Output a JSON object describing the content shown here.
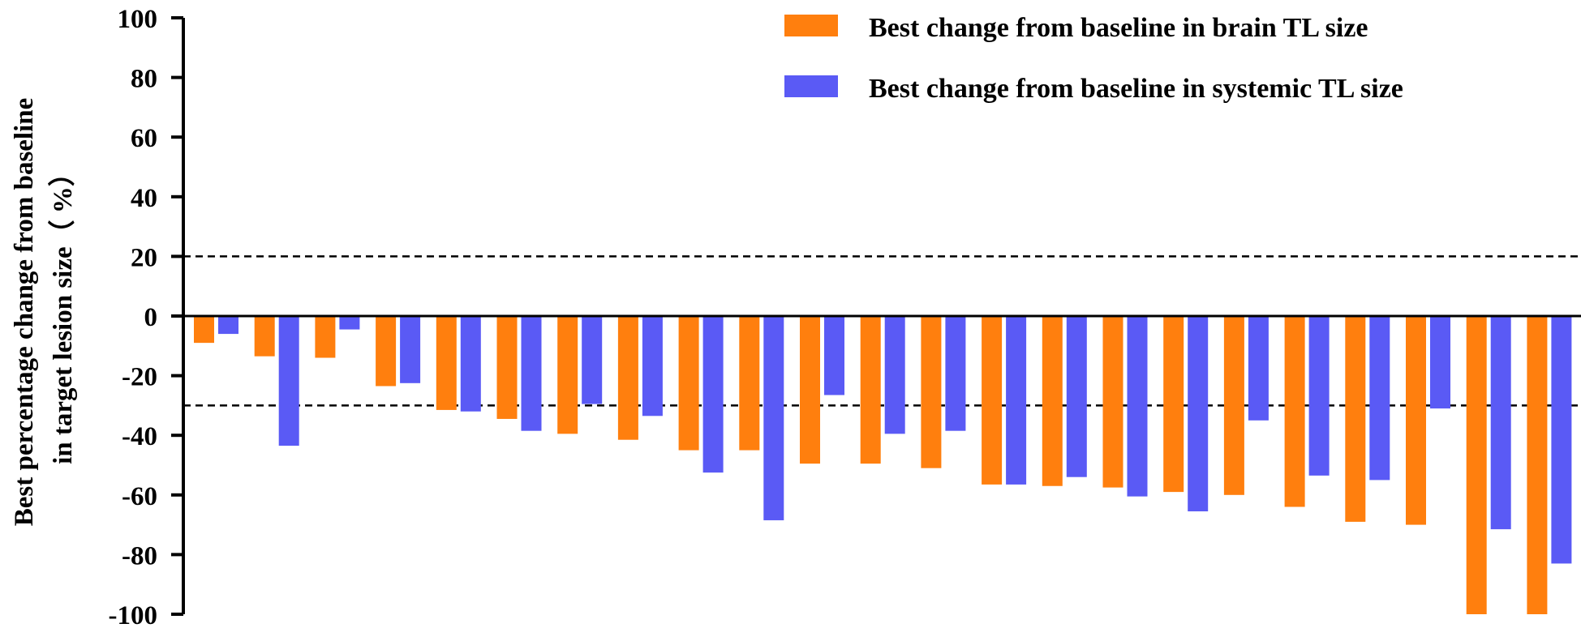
{
  "chart_data": {
    "type": "bar",
    "ylabel": [
      "Best percentage change from baseline",
      "in target lesion size（ %）"
    ],
    "ylim": [
      -100,
      100
    ],
    "yticks": [
      "100",
      "80",
      "60",
      "40",
      "20",
      "0",
      "-20",
      "-40",
      "-60",
      "-80",
      "-100"
    ],
    "reference_lines": [
      20,
      -30
    ],
    "legend_position": "top-right",
    "series": [
      {
        "name": "Best change from baseline in brain TL size",
        "color": "#FF7F0E",
        "values": [
          -9,
          -13.5,
          -14,
          -23.5,
          -31.5,
          -34.5,
          -39.5,
          -41.5,
          -45,
          -45,
          -49.5,
          -49.5,
          -51,
          -56.5,
          -57,
          -57.5,
          -59,
          -60,
          -64,
          -69,
          -70,
          -100,
          -100
        ]
      },
      {
        "name": "Best change from baseline in systemic TL size",
        "color": "#5A5AF5",
        "values": [
          -6,
          -43.5,
          -4.5,
          -22.5,
          -32,
          -38.5,
          -29.5,
          -33.5,
          -52.5,
          -68.5,
          -26.5,
          -39.5,
          -38.5,
          -56.5,
          -54,
          -60.5,
          -65.5,
          -35,
          -53.5,
          -55,
          -31,
          -71.5,
          -83
        ]
      }
    ]
  }
}
